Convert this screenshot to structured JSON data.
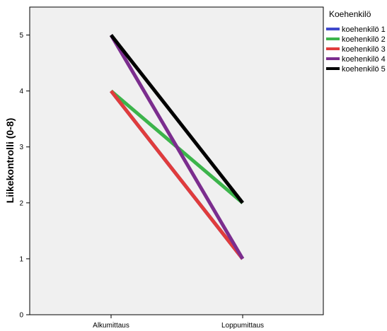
{
  "chart_data": {
    "type": "line",
    "categories": [
      "Alkumittaus",
      "Loppumittaus"
    ],
    "ylabel": "Liikekontrolli (0-8)",
    "xlabel": "",
    "ylim": [
      0,
      5.5
    ],
    "yticks": [
      "0",
      "1",
      "2",
      "3",
      "4",
      "5"
    ],
    "grid": false,
    "legend": {
      "title": "Koehenkilö",
      "placement": "right"
    },
    "series": [
      {
        "name": "koehenkilö 1",
        "values": [
          4,
          1
        ],
        "color": "#3f48cc"
      },
      {
        "name": "koehenkilö 2",
        "values": [
          4,
          2
        ],
        "color": "#3cb44b"
      },
      {
        "name": "koehenkilö 3",
        "values": [
          4,
          1
        ],
        "color": "#e03c3c"
      },
      {
        "name": "koehenkilö 4",
        "values": [
          5,
          1
        ],
        "color": "#7b2d8e"
      },
      {
        "name": "koehenkilö 5",
        "values": [
          5,
          2
        ],
        "color": "#000000"
      }
    ]
  }
}
